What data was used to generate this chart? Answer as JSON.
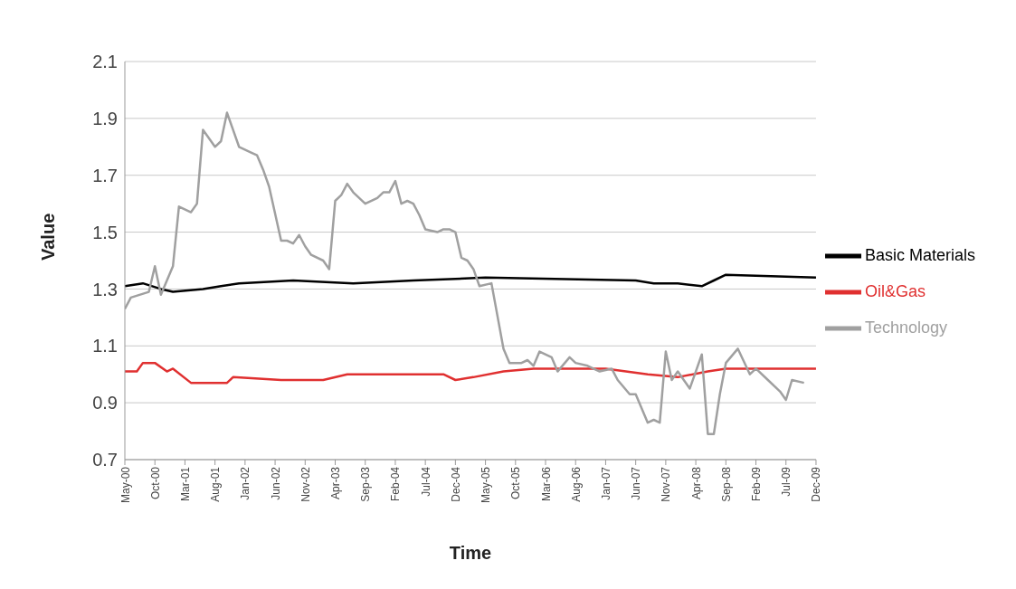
{
  "chart_data": {
    "type": "line",
    "xlabel": "Time",
    "ylabel": "Value",
    "xlim": [
      "2000-05",
      "2009-12"
    ],
    "xticks": [
      {
        "value": "2000-05",
        "label": "May-00"
      },
      {
        "value": "2000-10",
        "label": "Oct-00"
      },
      {
        "value": "2001-03",
        "label": "Mar-01"
      },
      {
        "value": "2001-08",
        "label": "Aug-01"
      },
      {
        "value": "2002-01",
        "label": "Jan-02"
      },
      {
        "value": "2002-06",
        "label": "Jun-02"
      },
      {
        "value": "2002-11",
        "label": "Nov-02"
      },
      {
        "value": "2003-04",
        "label": "Apr-03"
      },
      {
        "value": "2003-09",
        "label": "Sep-03"
      },
      {
        "value": "2004-02",
        "label": "Feb-04"
      },
      {
        "value": "2004-07",
        "label": "Jul-04"
      },
      {
        "value": "2004-12",
        "label": "Dec-04"
      },
      {
        "value": "2005-05",
        "label": "May-05"
      },
      {
        "value": "2005-10",
        "label": "Oct-05"
      },
      {
        "value": "2006-03",
        "label": "Mar-06"
      },
      {
        "value": "2006-08",
        "label": "Aug-06"
      },
      {
        "value": "2007-01",
        "label": "Jan-07"
      },
      {
        "value": "2007-06",
        "label": "Jun-07"
      },
      {
        "value": "2007-11",
        "label": "Nov-07"
      },
      {
        "value": "2008-04",
        "label": "Apr-08"
      },
      {
        "value": "2008-09",
        "label": "Sep-08"
      },
      {
        "value": "2009-02",
        "label": "Feb-09"
      },
      {
        "value": "2009-07",
        "label": "Jul-09"
      },
      {
        "value": "2009-12",
        "label": "Dec-09"
      }
    ],
    "ylim": [
      0.7,
      2.1
    ],
    "yticks": [
      {
        "value": 0.7,
        "label": "0.7"
      },
      {
        "value": 0.9,
        "label": "0.9"
      },
      {
        "value": 1.1,
        "label": "1.1"
      },
      {
        "value": 1.3,
        "label": "1.3"
      },
      {
        "value": 1.5,
        "label": "1.5"
      },
      {
        "value": 1.7,
        "label": "1.7"
      },
      {
        "value": 1.9,
        "label": "1.9"
      },
      {
        "value": 2.1,
        "label": "2.1"
      }
    ],
    "grid": "y",
    "legend": "right",
    "series": [
      {
        "name": "Oil&Gas",
        "color": "#e03030",
        "x": [
          "2000-05",
          "2000-07",
          "2000-08",
          "2000-10",
          "2000-12",
          "2001-01",
          "2001-04",
          "2001-06",
          "2001-10",
          "2001-11",
          "2002-07",
          "2003-02",
          "2003-06",
          "2004-03",
          "2004-10",
          "2004-12",
          "2005-03",
          "2005-08",
          "2006-01",
          "2007-01",
          "2007-08",
          "2008-01",
          "2008-06",
          "2008-09",
          "2009-04",
          "2009-12"
        ],
        "values": [
          1.01,
          1.01,
          1.04,
          1.04,
          1.01,
          1.02,
          0.97,
          0.97,
          0.97,
          0.99,
          0.98,
          0.98,
          1.0,
          1.0,
          1.0,
          0.98,
          0.99,
          1.01,
          1.02,
          1.02,
          1.0,
          0.99,
          1.01,
          1.02,
          1.02,
          1.02
        ]
      },
      {
        "name": "Basic Materials",
        "color": "#000000",
        "x": [
          "2000-05",
          "2000-08",
          "2000-11",
          "2001-01",
          "2001-06",
          "2001-09",
          "2001-12",
          "2002-09",
          "2003-07",
          "2004-05",
          "2005-05",
          "2007-06",
          "2007-09",
          "2008-01",
          "2008-05",
          "2008-07",
          "2008-09",
          "2009-12"
        ],
        "values": [
          1.31,
          1.32,
          1.3,
          1.29,
          1.3,
          1.31,
          1.32,
          1.33,
          1.32,
          1.33,
          1.34,
          1.33,
          1.32,
          1.32,
          1.31,
          1.33,
          1.35,
          1.34
        ]
      },
      {
        "name": "Technology",
        "color": "#a0a0a0",
        "x": [
          "2000-05",
          "2000-06",
          "2000-09",
          "2000-10",
          "2000-11",
          "2001-01",
          "2001-02",
          "2001-04",
          "2001-05",
          "2001-06",
          "2001-08",
          "2001-09",
          "2001-10",
          "2001-11",
          "2001-12",
          "2002-02",
          "2002-03",
          "2002-04",
          "2002-05",
          "2002-07",
          "2002-08",
          "2002-09",
          "2002-10",
          "2002-11",
          "2002-12",
          "2003-02",
          "2003-03",
          "2003-04",
          "2003-05",
          "2003-06",
          "2003-07",
          "2003-09",
          "2003-11",
          "2003-12",
          "2004-01",
          "2004-02",
          "2004-03",
          "2004-04",
          "2004-05",
          "2004-06",
          "2004-07",
          "2004-09",
          "2004-10",
          "2004-11",
          "2004-12",
          "2005-01",
          "2005-02",
          "2005-03",
          "2005-04",
          "2005-06",
          "2005-08",
          "2005-09",
          "2005-11",
          "2005-12",
          "2006-01",
          "2006-02",
          "2006-04",
          "2006-05",
          "2006-07",
          "2006-08",
          "2006-10",
          "2006-12",
          "2007-02",
          "2007-03",
          "2007-05",
          "2007-06",
          "2007-08",
          "2007-09",
          "2007-10",
          "2007-11",
          "2007-12",
          "2008-01",
          "2008-03",
          "2008-05",
          "2008-06",
          "2008-07",
          "2008-08",
          "2008-09",
          "2008-11",
          "2009-01",
          "2009-02",
          "2009-04",
          "2009-06",
          "2009-07",
          "2009-08",
          "2009-10"
        ],
        "values": [
          1.23,
          1.27,
          1.29,
          1.38,
          1.28,
          1.38,
          1.59,
          1.57,
          1.6,
          1.86,
          1.8,
          1.82,
          1.92,
          1.86,
          1.8,
          1.78,
          1.77,
          1.72,
          1.66,
          1.47,
          1.47,
          1.46,
          1.49,
          1.45,
          1.42,
          1.4,
          1.37,
          1.61,
          1.63,
          1.67,
          1.64,
          1.6,
          1.62,
          1.64,
          1.64,
          1.68,
          1.6,
          1.61,
          1.6,
          1.56,
          1.51,
          1.5,
          1.51,
          1.51,
          1.5,
          1.41,
          1.4,
          1.37,
          1.31,
          1.32,
          1.09,
          1.04,
          1.04,
          1.05,
          1.03,
          1.08,
          1.06,
          1.01,
          1.06,
          1.04,
          1.03,
          1.01,
          1.02,
          0.98,
          0.93,
          0.93,
          0.83,
          0.84,
          0.83,
          1.08,
          0.98,
          1.01,
          0.95,
          1.07,
          0.79,
          0.79,
          0.93,
          1.04,
          1.09,
          1.0,
          1.02,
          0.98,
          0.94,
          0.91,
          0.98,
          0.97
        ]
      }
    ]
  }
}
